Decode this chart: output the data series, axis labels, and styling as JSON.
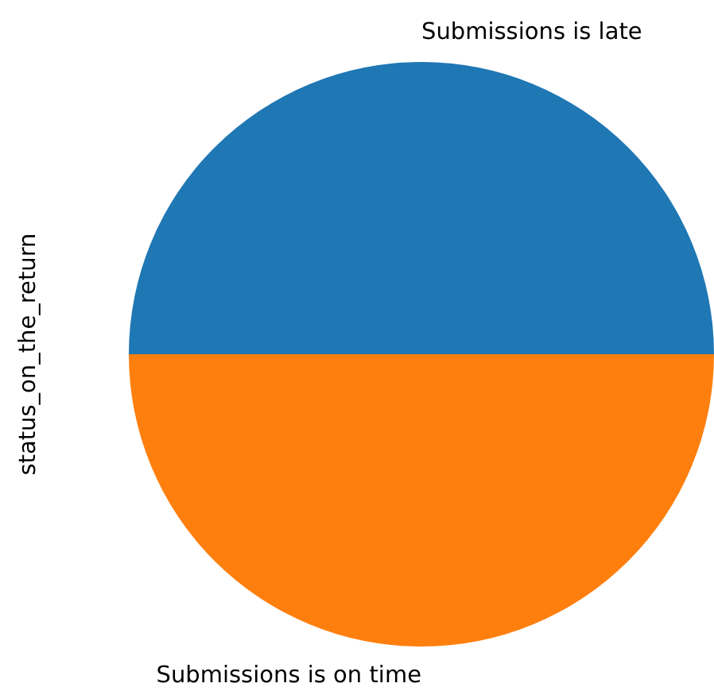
{
  "chart_data": {
    "type": "pie",
    "ylabel": "status_on_the_return",
    "categories": [
      "Submissions is late",
      "Submissions is on time"
    ],
    "values": [
      50,
      50
    ],
    "colors": [
      "#1f77b4",
      "#ff7f0e"
    ]
  }
}
